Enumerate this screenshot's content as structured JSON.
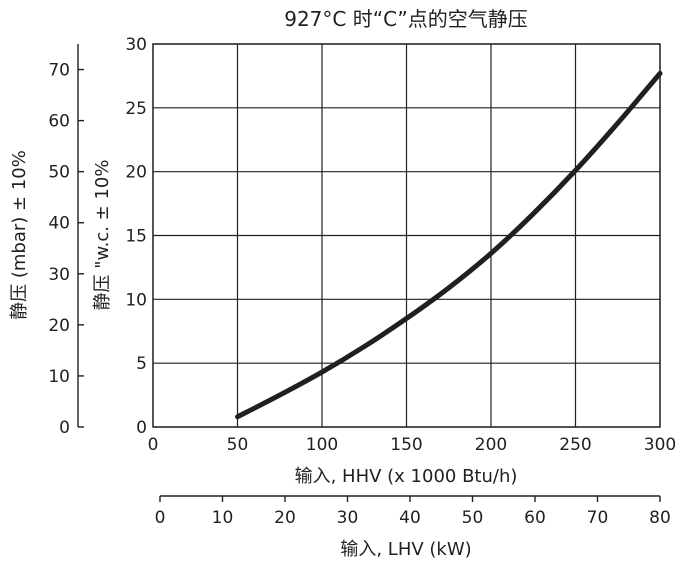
{
  "chart_data": {
    "type": "line",
    "title": "927°C 时“C”点的空气静压",
    "x_axis_primary": {
      "label": "输入, HHV (x 1000 Btu/h)",
      "range": [
        0,
        300
      ],
      "ticks": [
        0,
        50,
        100,
        150,
        200,
        250,
        300
      ]
    },
    "x_axis_secondary": {
      "label": "输入, LHV (kW)",
      "range": [
        0,
        80
      ],
      "ticks": [
        0,
        10,
        20,
        30,
        40,
        50,
        60,
        70,
        80
      ]
    },
    "y_axis_primary": {
      "label": "静压 \"w.c. ± 10%",
      "range": [
        0,
        30
      ],
      "ticks": [
        0,
        5,
        10,
        15,
        20,
        25,
        30
      ]
    },
    "y_axis_secondary": {
      "label": "静压 (mbar) ± 10%",
      "range": [
        0,
        75
      ],
      "ticks": [
        0,
        10,
        20,
        30,
        40,
        50,
        60,
        70
      ]
    },
    "grid": true,
    "series": [
      {
        "x": [
          50,
          75,
          100,
          125,
          150,
          175,
          200,
          225,
          250,
          275,
          300
        ],
        "y": [
          0.8,
          2.5,
          4.3,
          6.3,
          8.5,
          10.9,
          13.6,
          16.7,
          20.1,
          23.8,
          27.7
        ]
      }
    ],
    "colors": {
      "line": "#231f20",
      "grid": "#231f20",
      "text": "#231f20"
    }
  }
}
